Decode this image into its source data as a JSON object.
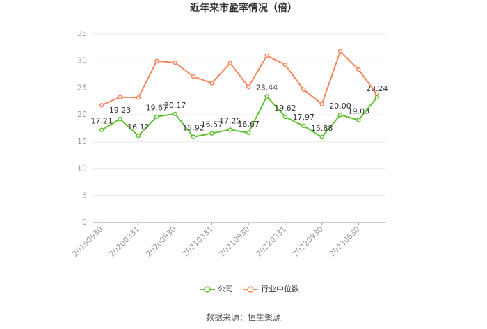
{
  "chart_data": {
    "type": "line",
    "title": "近年来市盈率情况（倍）",
    "source": "数据来源：恒生聚源",
    "categories": [
      "20190930",
      null,
      "20200331",
      null,
      "20200930",
      null,
      "20210331",
      null,
      "20210930",
      null,
      "20220331",
      null,
      "20220930",
      null,
      "20230630",
      null
    ],
    "series": [
      {
        "name": "公司",
        "color": "#5ec12f",
        "values": [
          17.21,
          19.23,
          16.12,
          19.67,
          20.17,
          15.92,
          16.57,
          17.25,
          16.67,
          23.44,
          19.62,
          17.97,
          15.88,
          20.0,
          19.03,
          23.24
        ],
        "value_labels": [
          "17.21",
          "19.23",
          "16.12",
          "19.67",
          "20.17",
          "15.92",
          "16.57",
          "17.25",
          "16.67",
          "23.44",
          "19.62",
          "17.97",
          "15.88",
          "20.00",
          "19.03",
          "23.24"
        ]
      },
      {
        "name": "行业中位数",
        "color": "#f5855a",
        "values": [
          21.8,
          23.3,
          23.2,
          30.0,
          29.7,
          27.1,
          25.9,
          29.6,
          25.2,
          31.0,
          29.3,
          24.7,
          22.0,
          31.8,
          28.4,
          23.8
        ]
      }
    ],
    "ylim": [
      0,
      35
    ],
    "yticks": [
      0,
      5,
      10,
      15,
      20,
      25,
      30,
      35
    ],
    "grid": true,
    "legend": "bottom"
  }
}
